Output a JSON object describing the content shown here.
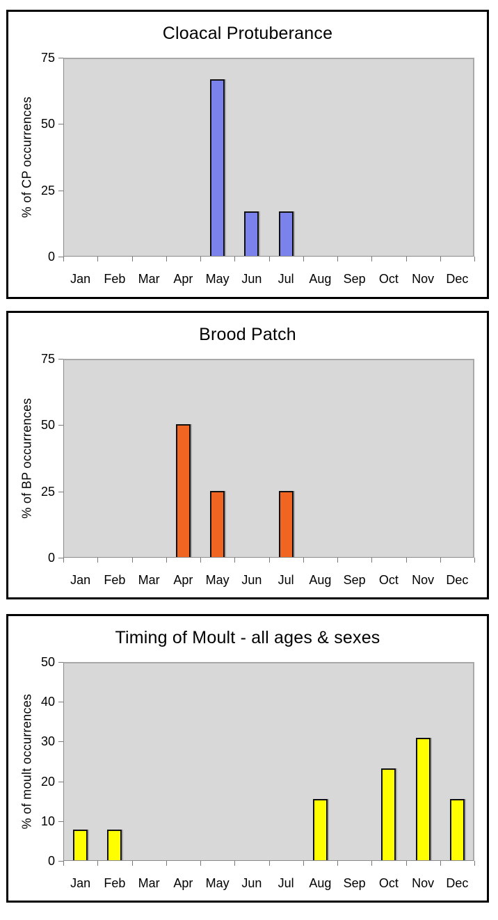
{
  "page": {
    "background": "#ffffff",
    "plot_background": "#d8d8d8"
  },
  "chart_data": [
    {
      "type": "bar",
      "title": "Cloacal Protuberance",
      "xlabel": "",
      "ylabel": "% of CP occurrences",
      "categories": [
        "Jan",
        "Feb",
        "Mar",
        "Apr",
        "May",
        "Jun",
        "Jul",
        "Aug",
        "Sep",
        "Oct",
        "Nov",
        "Dec"
      ],
      "values": [
        0,
        0,
        0,
        0,
        66.7,
        16.7,
        16.7,
        0,
        0,
        0,
        0,
        0
      ],
      "ylim": [
        0,
        75
      ],
      "yticks": [
        0,
        25,
        50,
        75
      ],
      "bar_color": "#7c82ec",
      "bar_outline": "#101010",
      "grid": false,
      "legend": false
    },
    {
      "type": "bar",
      "title": "Brood Patch",
      "xlabel": "",
      "ylabel": "% of BP occurrences",
      "categories": [
        "Jan",
        "Feb",
        "Mar",
        "Apr",
        "May",
        "Jun",
        "Jul",
        "Aug",
        "Sep",
        "Oct",
        "Nov",
        "Dec"
      ],
      "values": [
        0,
        0,
        0,
        50,
        25,
        0,
        25,
        0,
        0,
        0,
        0,
        0
      ],
      "ylim": [
        0,
        75
      ],
      "yticks": [
        0,
        25,
        50,
        75
      ],
      "bar_color": "#f16522",
      "bar_outline": "#101010",
      "grid": false,
      "legend": false
    },
    {
      "type": "bar",
      "title": "Timing of Moult - all ages & sexes",
      "xlabel": "",
      "ylabel": "% of moult occurrences",
      "categories": [
        "Jan",
        "Feb",
        "Mar",
        "Apr",
        "May",
        "Jun",
        "Jul",
        "Aug",
        "Sep",
        "Oct",
        "Nov",
        "Dec"
      ],
      "values": [
        7.7,
        7.7,
        0,
        0,
        0,
        0,
        0,
        15.4,
        0,
        23.1,
        30.8,
        15.4
      ],
      "ylim": [
        0,
        50
      ],
      "yticks": [
        0,
        10,
        20,
        30,
        40,
        50
      ],
      "bar_color": "#ffff00",
      "bar_outline": "#101010",
      "grid": false,
      "legend": false
    }
  ]
}
